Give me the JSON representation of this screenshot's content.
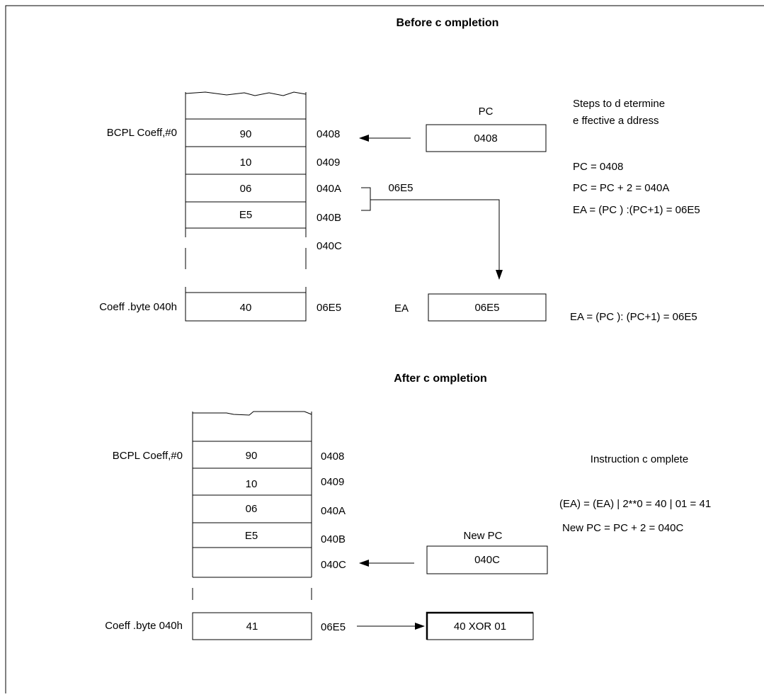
{
  "before": {
    "title": "Before c ompletion",
    "row_label": "BCPL Coeff,#0",
    "cells": [
      "90",
      "10",
      "06",
      "E5"
    ],
    "addresses": [
      "0408",
      "0409",
      "040A",
      "040B",
      "040C"
    ],
    "operand_label": "Coeff .byte 040h",
    "operand_value": "40",
    "operand_address": "06E5",
    "pc_label": "PC",
    "pc_value": "0408",
    "bracket_value": "06E5",
    "ea_label": "EA",
    "ea_value": "06E5",
    "steps": [
      "Steps to d etermine",
      "e ffective a ddress",
      "PC = 0408",
      "PC = PC + 2 = 040A",
      "EA = (PC ) :(PC+1) = 06E5"
    ],
    "ea_note": "EA = (PC ): (PC+1) = 06E5"
  },
  "after": {
    "title": "After c ompletion",
    "row_label": "BCPL Coeff,#0",
    "cells": [
      "90",
      "10",
      "06",
      "E5"
    ],
    "addresses": [
      "0408",
      "0409",
      "040A",
      "040B",
      "040C"
    ],
    "operand_label": "Coeff .byte 040h",
    "operand_value": "41",
    "operand_address": "06E5",
    "pc_label": "New PC",
    "pc_value": "040C",
    "result_value": "40 XOR 01",
    "notes": [
      "Instruction c omplete",
      "(EA) = (EA) | 2**0 = 40 | 01 = 41",
      "New PC = PC + 2 = 040C"
    ]
  }
}
